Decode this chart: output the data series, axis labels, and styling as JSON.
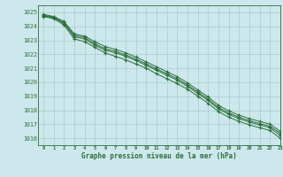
{
  "title": "Graphe pression niveau de la mer (hPa)",
  "bg_color": "#cce8ec",
  "grid_color": "#aacccc",
  "line_color": "#2d6e3a",
  "xlim": [
    -0.5,
    23
  ],
  "ylim": [
    1015.5,
    1025.5
  ],
  "xticks": [
    0,
    1,
    2,
    3,
    4,
    5,
    6,
    7,
    8,
    9,
    10,
    11,
    12,
    13,
    14,
    15,
    16,
    17,
    18,
    19,
    20,
    21,
    22,
    23
  ],
  "yticks": [
    1016,
    1017,
    1018,
    1019,
    1020,
    1021,
    1022,
    1023,
    1024,
    1025
  ],
  "series": [
    [
      1024.7,
      1024.55,
      1024.1,
      1023.1,
      1022.9,
      1022.5,
      1022.1,
      1021.85,
      1021.6,
      1021.3,
      1021.0,
      1020.6,
      1020.25,
      1019.9,
      1019.5,
      1019.0,
      1018.5,
      1017.9,
      1017.5,
      1017.2,
      1016.95,
      1016.75,
      1016.55,
      1016.0
    ],
    [
      1024.75,
      1024.6,
      1024.2,
      1023.25,
      1023.1,
      1022.65,
      1022.3,
      1022.1,
      1021.85,
      1021.55,
      1021.2,
      1020.85,
      1020.5,
      1020.15,
      1019.7,
      1019.2,
      1018.7,
      1018.1,
      1017.7,
      1017.4,
      1017.15,
      1016.95,
      1016.75,
      1016.2
    ],
    [
      1024.8,
      1024.65,
      1024.3,
      1023.35,
      1023.2,
      1022.75,
      1022.4,
      1022.2,
      1021.95,
      1021.65,
      1021.3,
      1020.95,
      1020.6,
      1020.25,
      1019.8,
      1019.3,
      1018.8,
      1018.2,
      1017.8,
      1017.5,
      1017.25,
      1017.05,
      1016.85,
      1016.35
    ],
    [
      1024.85,
      1024.7,
      1024.35,
      1023.45,
      1023.3,
      1022.9,
      1022.55,
      1022.35,
      1022.1,
      1021.8,
      1021.45,
      1021.1,
      1020.75,
      1020.4,
      1019.95,
      1019.45,
      1018.95,
      1018.35,
      1017.95,
      1017.65,
      1017.4,
      1017.2,
      1017.0,
      1016.5
    ]
  ]
}
